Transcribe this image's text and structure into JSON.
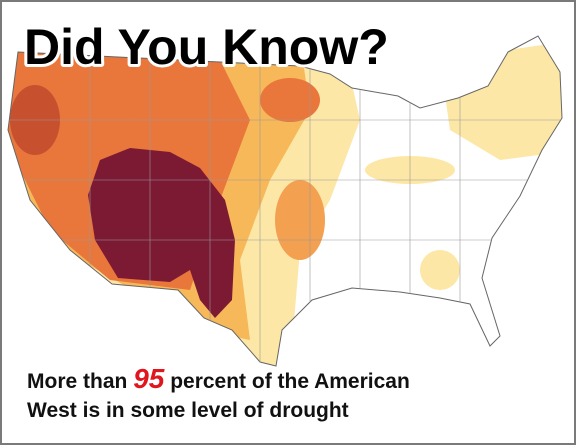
{
  "header": {
    "title": "Did You Know?"
  },
  "caption": {
    "line1_start": "More than",
    "number": 95,
    "line1_end": "percent of the American",
    "line2": "West is in some level of drought"
  }
}
